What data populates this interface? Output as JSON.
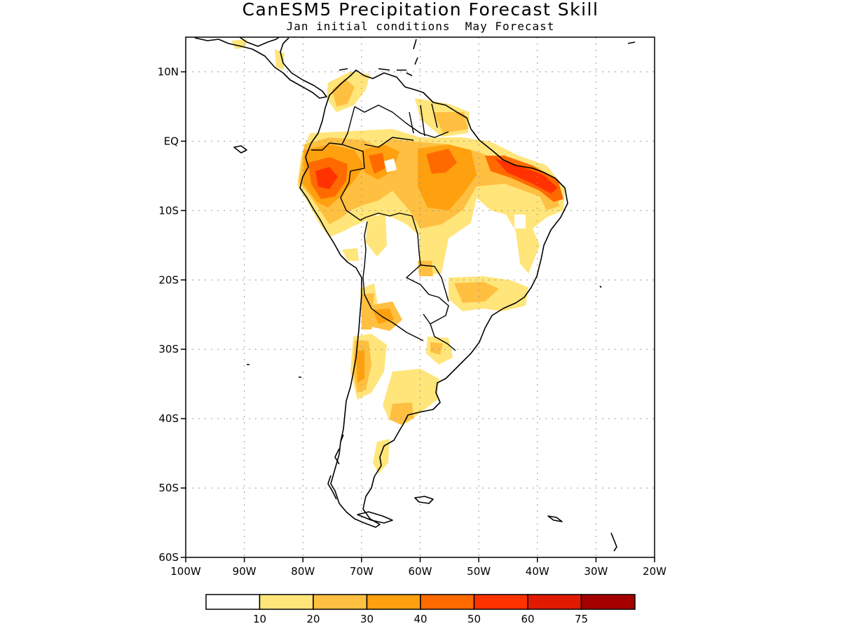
{
  "title": "CanESM5 Precipitation Forecast Skill",
  "subtitle": "Jan initial conditions  May Forecast",
  "map": {
    "lon_range": [
      -100,
      -20
    ],
    "lat_range": [
      -60,
      15
    ],
    "grid": true,
    "lat_ticks": [
      {
        "value": 10,
        "label": "10N"
      },
      {
        "value": 0,
        "label": "EQ"
      },
      {
        "value": -10,
        "label": "10S"
      },
      {
        "value": -20,
        "label": "20S"
      },
      {
        "value": -30,
        "label": "30S"
      },
      {
        "value": -40,
        "label": "40S"
      },
      {
        "value": -50,
        "label": "50S"
      },
      {
        "value": -60,
        "label": "60S"
      }
    ],
    "lon_ticks": [
      {
        "value": -100,
        "label": "100W"
      },
      {
        "value": -90,
        "label": "90W"
      },
      {
        "value": -80,
        "label": "80W"
      },
      {
        "value": -70,
        "label": "70W"
      },
      {
        "value": -60,
        "label": "60W"
      },
      {
        "value": -50,
        "label": "50W"
      },
      {
        "value": -40,
        "label": "40W"
      },
      {
        "value": -30,
        "label": "30W"
      },
      {
        "value": -20,
        "label": "20W"
      }
    ]
  },
  "colorbar": {
    "colors": [
      "#ffffff",
      "#ffe57a",
      "#ffbf40",
      "#ffa00f",
      "#ff6a00",
      "#ff3200",
      "#e01a00",
      "#a50000"
    ],
    "labels": [
      "10",
      "20",
      "30",
      "40",
      "50",
      "60",
      "75"
    ]
  },
  "colors": {
    "coast": "#000000",
    "grid": "#999999"
  }
}
